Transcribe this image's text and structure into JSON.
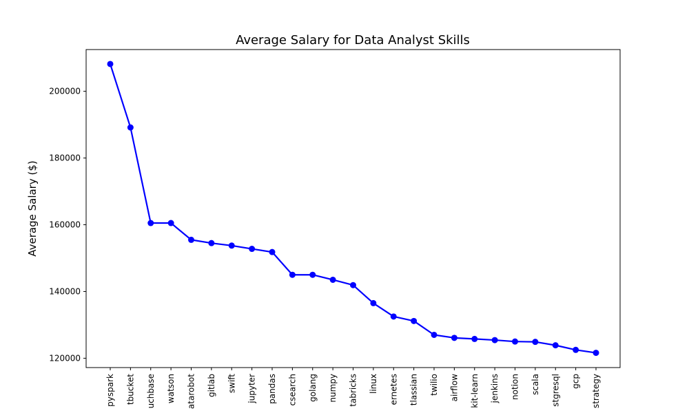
{
  "chart_data": {
    "type": "line",
    "title": "Average Salary for Data Analyst Skills",
    "xlabel": "",
    "ylabel": "Average Salary ($)",
    "categories": [
      "pyspark",
      "bitbucket",
      "couchbase",
      "watson",
      "datarobot",
      "gitlab",
      "swift",
      "jupyter",
      "pandas",
      "elasticsearch",
      "golang",
      "numpy",
      "databricks",
      "linux",
      "kubernetes",
      "atlassian",
      "twilio",
      "airflow",
      "scikit-learn",
      "jenkins",
      "notion",
      "scala",
      "postgresql",
      "gcp",
      "microstrategy"
    ],
    "tick_labels": [
      "pyspark",
      "tbucket",
      "uchbase",
      "watson",
      "atarobot",
      "gitlab",
      "swift",
      "jupyter",
      "pandas",
      "csearch",
      "golang",
      "numpy",
      "tabricks",
      "linux",
      "ernetes",
      "tlassian",
      "twilio",
      "airflow",
      "kit-learn",
      "jenkins",
      "notion",
      "scala",
      "stgresql",
      "gcp",
      "strategy"
    ],
    "series": [
      {
        "values": [
          208172,
          189155,
          160515,
          160515,
          155486,
          154500,
          153750,
          152777,
          151821,
          145000,
          145000,
          143513,
          141907,
          136508,
          132500,
          131162,
          127000,
          126103,
          125781,
          125436,
          125000,
          124903,
          123879,
          122500,
          121619
        ],
        "color": "#0000ff"
      }
    ],
    "yticks": [
      120000,
      140000,
      160000,
      180000,
      200000
    ],
    "ytick_labels": [
      "120000",
      "140000",
      "160000",
      "180000",
      "200000"
    ],
    "ylim": [
      117200,
      212500
    ],
    "grid": false,
    "legend": "none"
  }
}
